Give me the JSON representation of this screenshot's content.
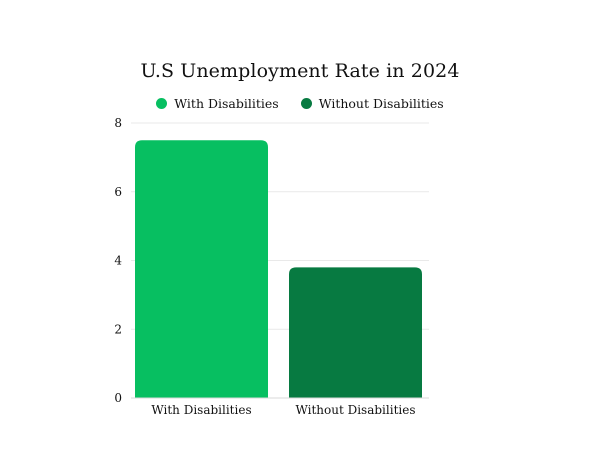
{
  "chart_data": {
    "type": "bar",
    "title": "U.S Unemployment Rate in 2024",
    "xlabel": "",
    "ylabel": "",
    "categories": [
      "With Disabilities",
      "Without Disabilities"
    ],
    "values": [
      7.5,
      3.8
    ],
    "colors": [
      "#07bf61",
      "#077a41"
    ],
    "ylim": [
      0,
      8
    ],
    "yticks": [
      0,
      2,
      4,
      6,
      8
    ],
    "grid": true,
    "legend": {
      "placement": "top-center",
      "entries": [
        {
          "label": "With Disabilities",
          "color": "#07bf61"
        },
        {
          "label": "Without Disabilities",
          "color": "#077a41"
        }
      ]
    }
  }
}
